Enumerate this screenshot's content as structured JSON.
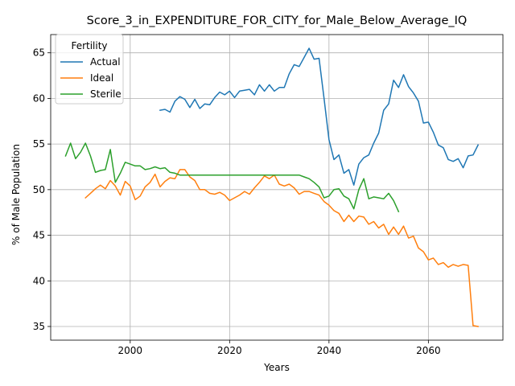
{
  "chart_data": {
    "type": "line",
    "title": "Score_3_in_EXPENDITURE_FOR_CITY_for_Male_Below_Average_IQ",
    "xlabel": "Years",
    "ylabel": "% of Male Population",
    "xlim": [
      1984,
      2075
    ],
    "ylim": [
      33.5,
      67
    ],
    "xticks": [
      2000,
      2020,
      2040,
      2060
    ],
    "yticks": [
      35,
      40,
      45,
      50,
      55,
      60,
      65
    ],
    "grid": true,
    "legend": {
      "title": "Fertility",
      "position": "top-left"
    },
    "series": [
      {
        "name": "Actual",
        "color": "#1f77b4",
        "x": [
          2006,
          2007,
          2008,
          2009,
          2010,
          2011,
          2012,
          2013,
          2014,
          2015,
          2016,
          2017,
          2018,
          2019,
          2020,
          2021,
          2022,
          2023,
          2024,
          2025,
          2026,
          2027,
          2028,
          2029,
          2030,
          2031,
          2032,
          2033,
          2034,
          2035,
          2036,
          2037,
          2038,
          2039,
          2040,
          2041,
          2042,
          2043,
          2044,
          2045,
          2046,
          2047,
          2048,
          2049,
          2050,
          2051,
          2052,
          2053,
          2054,
          2055,
          2056,
          2057,
          2058,
          2059,
          2060,
          2061,
          2062,
          2063,
          2064,
          2065,
          2066,
          2067,
          2068,
          2069,
          2070
        ],
        "y": [
          58.7,
          58.8,
          58.5,
          59.7,
          60.2,
          59.9,
          59.0,
          59.9,
          58.9,
          59.4,
          59.3,
          60.1,
          60.7,
          60.4,
          60.8,
          60.1,
          60.8,
          60.9,
          61.0,
          60.4,
          61.5,
          60.8,
          61.5,
          60.8,
          61.2,
          61.2,
          62.7,
          63.7,
          63.5,
          64.5,
          65.5,
          64.3,
          64.4,
          60.0,
          55.5,
          53.3,
          53.8,
          51.8,
          52.2,
          50.5,
          52.8,
          53.5,
          53.8,
          55.1,
          56.2,
          58.7,
          59.4,
          62.0,
          61.2,
          62.6,
          61.3,
          60.6,
          59.7,
          57.3,
          57.4,
          56.3,
          54.9,
          54.6,
          53.3,
          53.1,
          53.4,
          52.4,
          53.7,
          53.8,
          54.9
        ]
      },
      {
        "name": "Ideal",
        "color": "#ff7f0e",
        "x": [
          1991,
          1992,
          1993,
          1994,
          1995,
          1996,
          1997,
          1998,
          1999,
          2000,
          2001,
          2002,
          2003,
          2004,
          2005,
          2006,
          2007,
          2008,
          2009,
          2010,
          2011,
          2012,
          2013,
          2014,
          2015,
          2016,
          2017,
          2018,
          2019,
          2020,
          2021,
          2022,
          2023,
          2024,
          2025,
          2026,
          2027,
          2028,
          2029,
          2030,
          2031,
          2032,
          2033,
          2034,
          2035,
          2036,
          2037,
          2038,
          2039,
          2040,
          2041,
          2042,
          2043,
          2044,
          2045,
          2046,
          2047,
          2048,
          2049,
          2050,
          2051,
          2052,
          2053,
          2054,
          2055,
          2056,
          2057,
          2058,
          2059,
          2060,
          2061,
          2062,
          2063,
          2064,
          2065,
          2066,
          2067,
          2068,
          2069,
          2070
        ],
        "y": [
          49.1,
          49.6,
          50.1,
          50.5,
          50.1,
          51.0,
          50.4,
          49.4,
          50.9,
          50.4,
          48.9,
          49.3,
          50.3,
          50.8,
          51.7,
          50.3,
          50.9,
          51.3,
          51.2,
          52.2,
          52.2,
          51.4,
          51.0,
          50.0,
          50.0,
          49.6,
          49.5,
          49.7,
          49.4,
          48.8,
          49.1,
          49.4,
          49.8,
          49.5,
          50.2,
          50.8,
          51.5,
          51.2,
          51.6,
          50.6,
          50.4,
          50.6,
          50.2,
          49.5,
          49.8,
          49.8,
          49.6,
          49.4,
          48.7,
          48.3,
          47.7,
          47.4,
          46.5,
          47.2,
          46.5,
          47.1,
          47.0,
          46.2,
          46.5,
          45.8,
          46.2,
          45.1,
          45.9,
          45.1,
          46.0,
          44.7,
          44.9,
          43.6,
          43.2,
          42.3,
          42.5,
          41.8,
          42.0,
          41.5,
          41.8,
          41.6,
          41.8,
          41.7,
          35.1,
          35.0
        ]
      },
      {
        "name": "Sterile",
        "color": "#2ca02c",
        "x": [
          1987,
          1988,
          1989,
          1990,
          1991,
          1992,
          1993,
          1994,
          1995,
          1996,
          1997,
          1998,
          1999,
          2000,
          2001,
          2002,
          2003,
          2004,
          2005,
          2006,
          2007,
          2008,
          2009,
          2010,
          2011,
          2012,
          2013,
          2014,
          2015,
          2016,
          2017,
          2018,
          2019,
          2020,
          2021,
          2022,
          2023,
          2024,
          2025,
          2026,
          2027,
          2028,
          2029,
          2030,
          2031,
          2032,
          2033,
          2034,
          2035,
          2036,
          2037,
          2038,
          2039,
          2040,
          2041,
          2042,
          2043,
          2044,
          2045,
          2046,
          2047,
          2048,
          2049,
          2050,
          2051,
          2052,
          2053,
          2054
        ],
        "y": [
          53.7,
          55.1,
          53.4,
          54.1,
          55.1,
          53.7,
          51.9,
          52.1,
          52.2,
          54.4,
          50.8,
          51.8,
          53.0,
          52.8,
          52.6,
          52.6,
          52.2,
          52.3,
          52.5,
          52.3,
          52.4,
          51.9,
          51.8,
          51.6,
          51.6,
          51.6,
          51.6,
          51.6,
          51.6,
          51.6,
          51.6,
          51.6,
          51.6,
          51.6,
          51.6,
          51.6,
          51.6,
          51.6,
          51.6,
          51.6,
          51.6,
          51.6,
          51.6,
          51.6,
          51.6,
          51.6,
          51.6,
          51.6,
          51.4,
          51.2,
          50.8,
          50.3,
          49.1,
          49.3,
          50.0,
          50.1,
          49.3,
          49.0,
          47.9,
          50.0,
          51.2,
          49.0,
          49.2,
          49.1,
          49.0,
          49.6,
          48.8,
          47.6
        ]
      }
    ]
  }
}
